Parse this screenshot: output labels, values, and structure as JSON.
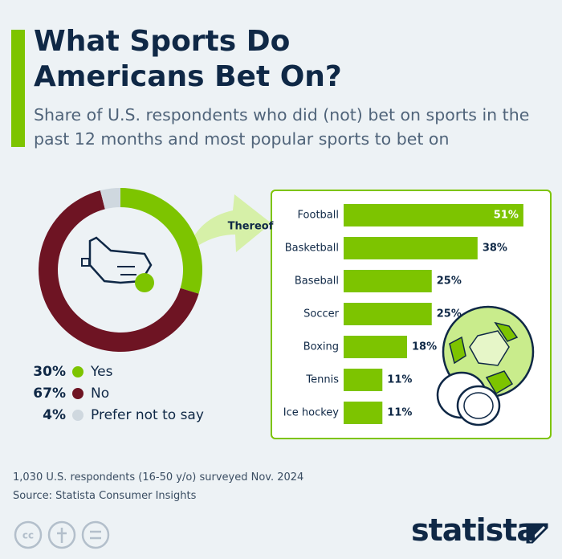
{
  "header": {
    "title": "What Sports Do Americans Bet On?",
    "subtitle": "Share of U.S. respondents who did (not) bet on sports in the past 12 months and most popular sports to bet on"
  },
  "chart_data": [
    {
      "type": "donut",
      "categories": [
        "Yes",
        "No",
        "Prefer not to say"
      ],
      "values": [
        30,
        67,
        4
      ],
      "value_labels": [
        "30%",
        "67%",
        "4%"
      ],
      "colors": [
        "#7dc400",
        "#6e1423",
        "#cfd8df"
      ]
    },
    {
      "type": "bar",
      "annotation": "Thereof",
      "categories": [
        "Football",
        "Basketball",
        "Baseball",
        "Soccer",
        "Boxing",
        "Tennis",
        "Ice hockey"
      ],
      "values": [
        51,
        38,
        25,
        25,
        18,
        11,
        11
      ],
      "value_labels": [
        "51%",
        "38%",
        "25%",
        "25%",
        "18%",
        "11%",
        "11%"
      ],
      "color": "#7dc400"
    }
  ],
  "footer": {
    "note": "1,030 U.S. respondents (16-50 y/o) surveyed Nov. 2024",
    "source": "Source: Statista Consumer Insights",
    "brand": "statista"
  }
}
